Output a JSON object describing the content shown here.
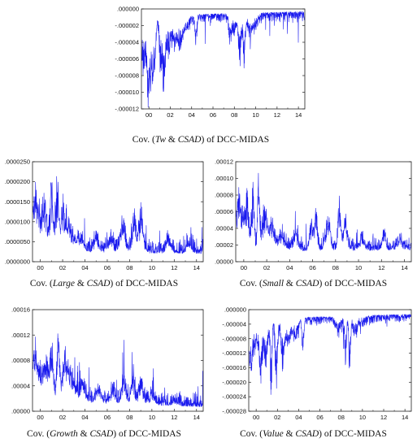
{
  "figure": {
    "chart_data": [
      {
        "id": "tw",
        "type": "line",
        "caption_prefix": "Cov. (",
        "caption_var": "Tw",
        "caption_mid": " & ",
        "caption_var2": "CSAD",
        "caption_suffix": ") of DCC-MIDAS",
        "yticks": [
          -1.2e-05,
          -1e-05,
          -8e-06,
          -6e-06,
          -4e-06,
          -2e-06,
          0.0
        ],
        "ytick_labels": [
          "-.000012",
          "-.000010",
          "-.000008",
          "-.000006",
          "-.000004",
          "-.000002",
          ".000000"
        ],
        "ylim": [
          -1.2e-05,
          0.0
        ],
        "xticks": [
          2000,
          2002,
          2004,
          2006,
          2008,
          2010,
          2012,
          2014
        ],
        "xtick_labels": [
          "00",
          "02",
          "04",
          "06",
          "08",
          "10",
          "12",
          "14"
        ],
        "xlim": [
          1999.3,
          2014.6
        ],
        "line_color": "#1a1aee",
        "baseline": -8e-07,
        "baseline_end": -3e-07,
        "noise": 6e-07,
        "spikes": [
          [
            1999.4,
            -7.5e-06,
            0.25
          ],
          [
            1999.9,
            -8.5e-06,
            0.15
          ],
          [
            2000.2,
            -9.2e-06,
            0.2
          ],
          [
            2000.5,
            -6e-06,
            0.15
          ],
          [
            2001.1,
            -8.2e-06,
            0.12
          ],
          [
            2001.4,
            -1.05e-05,
            0.1
          ],
          [
            2001.8,
            -6e-06,
            0.2
          ],
          [
            2002.4,
            -4e-06,
            0.2
          ],
          [
            2002.9,
            -4.5e-06,
            0.25
          ],
          [
            2003.5,
            -2.5e-06,
            0.3
          ],
          [
            2004.4,
            -5e-06,
            0.08
          ],
          [
            2007.6,
            -4.5e-06,
            0.12
          ],
          [
            2008.0,
            -3.5e-06,
            0.15
          ],
          [
            2008.5,
            -7e-06,
            0.12
          ],
          [
            2008.9,
            -7.5e-06,
            0.1
          ],
          [
            2009.4,
            -3.5e-06,
            0.2
          ],
          [
            2009.9,
            -2.5e-06,
            0.25
          ]
        ]
      },
      {
        "id": "large",
        "type": "line",
        "caption_prefix": "Cov. (",
        "caption_var": "Large",
        "caption_mid": " & ",
        "caption_var2": "CSAD",
        "caption_suffix": ") of DCC-MIDAS",
        "yticks": [
          0.0,
          5e-06,
          1e-05,
          1.5e-05,
          2e-05,
          2.5e-05
        ],
        "ytick_labels": [
          ".0000000",
          ".0000050",
          ".0000100",
          ".0000150",
          ".0000200",
          ".0000250"
        ],
        "ylim": [
          0.0,
          2.5e-05
        ],
        "xticks": [
          2000,
          2002,
          2004,
          2006,
          2008,
          2010,
          2012,
          2014
        ],
        "xtick_labels": [
          "00",
          "02",
          "04",
          "06",
          "08",
          "10",
          "12",
          "14"
        ],
        "xlim": [
          1999.3,
          2014.6
        ],
        "line_color": "#1a1aee",
        "baseline": 2.5e-06,
        "baseline_end": 2e-06,
        "noise": 2e-06,
        "spikes": [
          [
            1999.5,
            1.7e-05,
            0.15
          ],
          [
            1999.9,
            1.2e-05,
            0.25
          ],
          [
            2000.4,
            1.5e-05,
            0.2
          ],
          [
            2001.0,
            1.95e-05,
            0.15
          ],
          [
            2001.5,
            2e-05,
            0.12
          ],
          [
            2002.0,
            1.3e-05,
            0.25
          ],
          [
            2002.6,
            9e-06,
            0.3
          ],
          [
            2003.5,
            6e-06,
            0.3
          ],
          [
            2005.0,
            6e-06,
            0.2
          ],
          [
            2006.3,
            6e-06,
            0.2
          ],
          [
            2007.4,
            9e-06,
            0.25
          ],
          [
            2008.4,
            1.35e-05,
            0.15
          ],
          [
            2009.0,
            1.2e-05,
            0.2
          ],
          [
            2011.5,
            5.5e-06,
            0.2
          ],
          [
            2013.3,
            5e-06,
            0.2
          ]
        ]
      },
      {
        "id": "small",
        "type": "line",
        "caption_prefix": "Cov. (",
        "caption_var": "Small",
        "caption_mid": " & ",
        "caption_var2": "CSAD",
        "caption_suffix": ") of DCC-MIDAS",
        "yticks": [
          0.0,
          2e-05,
          4e-05,
          6e-05,
          8e-05,
          0.0001,
          0.00012
        ],
        "ytick_labels": [
          ".00000",
          ".00002",
          ".00004",
          ".00006",
          ".00008",
          ".00010",
          ".00012"
        ],
        "ylim": [
          0.0,
          0.00012
        ],
        "xticks": [
          2000,
          2002,
          2004,
          2006,
          2008,
          2010,
          2012,
          2014
        ],
        "xtick_labels": [
          "00",
          "02",
          "04",
          "06",
          "08",
          "10",
          "12",
          "14"
        ],
        "xlim": [
          1999.3,
          2014.6
        ],
        "line_color": "#1a1aee",
        "baseline": 1.2e-05,
        "baseline_end": 1.4e-05,
        "noise": 8e-06,
        "spikes": [
          [
            1999.5,
            9e-05,
            0.15
          ],
          [
            1999.9,
            6e-05,
            0.2
          ],
          [
            2000.3,
            8e-05,
            0.15
          ],
          [
            2000.8,
            9.5e-05,
            0.12
          ],
          [
            2001.3,
            0.000103,
            0.1
          ],
          [
            2001.8,
            6.5e-05,
            0.2
          ],
          [
            2002.4,
            4.5e-05,
            0.25
          ],
          [
            2003.3,
            3e-05,
            0.3
          ],
          [
            2004.5,
            3.5e-05,
            0.2
          ],
          [
            2005.9,
            4.5e-05,
            0.15
          ],
          [
            2006.3,
            6e-05,
            0.12
          ],
          [
            2007.3,
            4.8e-05,
            0.2
          ],
          [
            2008.3,
            6.8e-05,
            0.12
          ],
          [
            2008.8,
            5e-05,
            0.2
          ],
          [
            2010.3,
            2.5e-05,
            0.2
          ],
          [
            2012.2,
            3.5e-05,
            0.15
          ],
          [
            2013.6,
            2.5e-05,
            0.2
          ]
        ]
      },
      {
        "id": "growth",
        "type": "line",
        "caption_prefix": "Cov. (",
        "caption_var": "Growth",
        "caption_mid": " & ",
        "caption_var2": "CSAD",
        "caption_suffix": ") of DCC-MIDAS",
        "yticks": [
          0.0,
          4e-05,
          8e-05,
          0.00012,
          0.00016
        ],
        "ytick_labels": [
          ".00000",
          ".00004",
          ".00008",
          ".00012",
          ".00016"
        ],
        "ylim": [
          0.0,
          0.00016
        ],
        "xticks": [
          2000,
          2002,
          2004,
          2006,
          2008,
          2010,
          2012,
          2014
        ],
        "xtick_labels": [
          "00",
          "02",
          "04",
          "06",
          "08",
          "10",
          "12",
          "14"
        ],
        "xlim": [
          1999.3,
          2014.6
        ],
        "line_color": "#1a1aee",
        "baseline": 1.5e-05,
        "baseline_end": 7e-06,
        "noise": 1.2e-05,
        "spikes": [
          [
            1999.5,
            0.0001,
            0.15
          ],
          [
            1999.9,
            7e-05,
            0.25
          ],
          [
            2000.5,
            9e-05,
            0.2
          ],
          [
            2001.0,
            0.00011,
            0.15
          ],
          [
            2001.6,
            0.00012,
            0.12
          ],
          [
            2002.2,
            8e-05,
            0.25
          ],
          [
            2002.8,
            6e-05,
            0.3
          ],
          [
            2003.8,
            4e-05,
            0.3
          ],
          [
            2005.2,
            3.5e-05,
            0.25
          ],
          [
            2006.5,
            4e-05,
            0.2
          ],
          [
            2007.5,
            5.5e-05,
            0.2
          ],
          [
            2008.3,
            6.2e-05,
            0.15
          ],
          [
            2009.0,
            5e-05,
            0.2
          ],
          [
            2010.0,
            2.8e-05,
            0.25
          ],
          [
            2012.0,
            2e-05,
            0.3
          ]
        ]
      },
      {
        "id": "value",
        "type": "line",
        "caption_prefix": "Cov. (",
        "caption_var": "Value",
        "caption_mid": " & ",
        "caption_var2": "CSAD",
        "caption_suffix": ") of DCC-MIDAS",
        "yticks": [
          -2.8e-05,
          -2.4e-05,
          -2e-05,
          -1.6e-05,
          -1.2e-05,
          -8e-06,
          -4e-06,
          0.0
        ],
        "ytick_labels": [
          "-.000028",
          "-.000024",
          "-.000020",
          "-.000016",
          "-.000012",
          "-.000008",
          "-.000004",
          ".000000"
        ],
        "ylim": [
          -2.8e-05,
          0.0
        ],
        "xticks": [
          2000,
          2002,
          2004,
          2006,
          2008,
          2010,
          2012,
          2014
        ],
        "xtick_labels": [
          "00",
          "02",
          "04",
          "06",
          "08",
          "10",
          "12",
          "14"
        ],
        "xlim": [
          1999.3,
          2014.6
        ],
        "line_color": "#1a1aee",
        "baseline": -2.5e-06,
        "baseline_end": -1.2e-06,
        "noise": 1.2e-06,
        "spikes": [
          [
            1999.5,
            -1.8e-05,
            0.15
          ],
          [
            1999.9,
            -1.2e-05,
            0.2
          ],
          [
            2000.4,
            -2.1e-05,
            0.15
          ],
          [
            2000.9,
            -1.6e-05,
            0.2
          ],
          [
            2001.4,
            -2.7e-05,
            0.08
          ],
          [
            2001.9,
            -2.2e-05,
            0.12
          ],
          [
            2002.5,
            -1.6e-05,
            0.15
          ],
          [
            2003.0,
            -1e-05,
            0.25
          ],
          [
            2003.7,
            -8e-06,
            0.25
          ],
          [
            2004.4,
            -1.5e-05,
            0.08
          ],
          [
            2007.7,
            -7e-06,
            0.2
          ],
          [
            2008.4,
            -1.6e-05,
            0.1
          ],
          [
            2008.8,
            -2e-05,
            0.08
          ],
          [
            2009.3,
            -8e-06,
            0.2
          ],
          [
            2010.0,
            -4e-06,
            0.3
          ]
        ]
      }
    ]
  }
}
